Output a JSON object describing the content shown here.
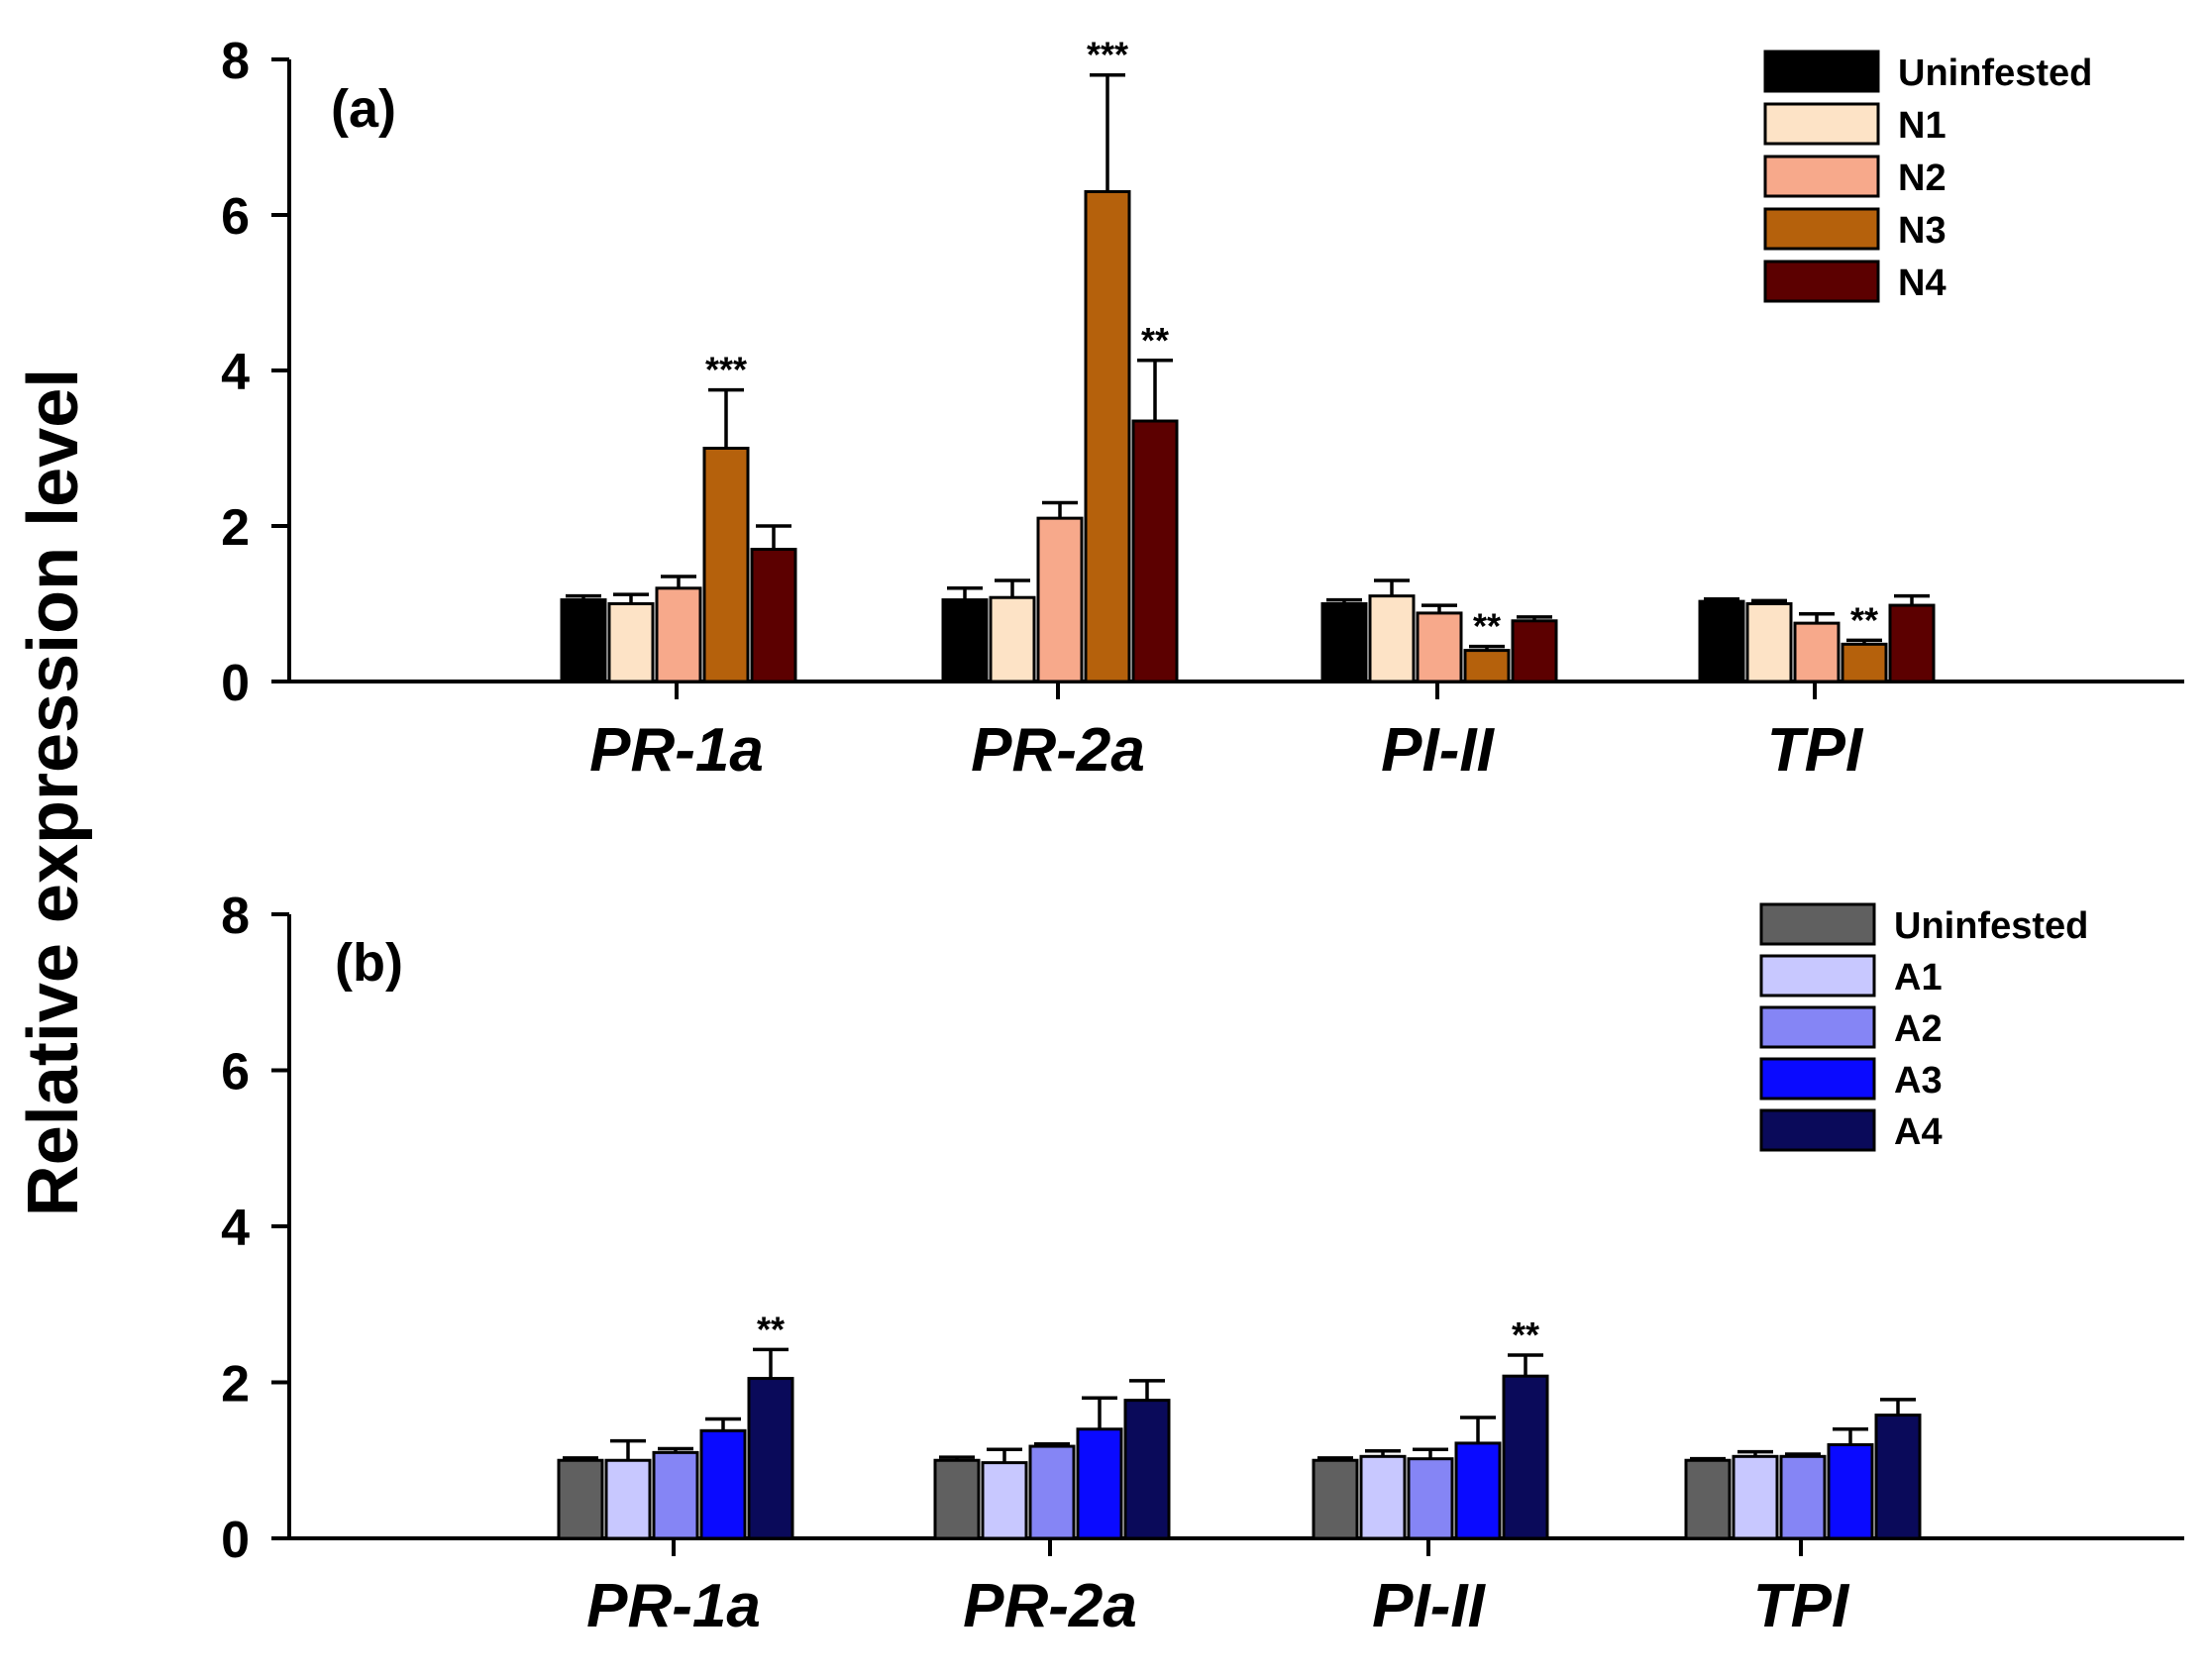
{
  "y_axis_label": "Relative expression level",
  "chart_data": [
    {
      "type": "bar",
      "panel_label": "(a)",
      "categories": [
        "PR-1a",
        "PR-2a",
        "PI-II",
        "TPI"
      ],
      "ylim": [
        0,
        8
      ],
      "yticks": [
        "0",
        "2",
        "4",
        "6",
        "8"
      ],
      "legend_position": "top-right",
      "series": [
        {
          "name": "Uninfested",
          "color": "#000000",
          "values": [
            1.05,
            1.05,
            1.0,
            1.03
          ],
          "errors": [
            0.05,
            0.15,
            0.05,
            0.03
          ]
        },
        {
          "name": "N1",
          "color": "#FDE3C6",
          "values": [
            1.0,
            1.08,
            1.1,
            1.0
          ],
          "errors": [
            0.12,
            0.22,
            0.2,
            0.04
          ]
        },
        {
          "name": "N2",
          "color": "#F7A98B",
          "values": [
            1.2,
            2.1,
            0.88,
            0.75
          ],
          "errors": [
            0.15,
            0.2,
            0.1,
            0.12
          ]
        },
        {
          "name": "N3",
          "color": "#B5610C",
          "values": [
            3.0,
            6.3,
            0.4,
            0.48
          ],
          "errors": [
            0.75,
            1.5,
            0.05,
            0.05
          ]
        },
        {
          "name": "N4",
          "color": "#5C0000",
          "values": [
            1.7,
            3.35,
            0.78,
            0.98
          ],
          "errors": [
            0.3,
            0.78,
            0.05,
            0.12
          ]
        }
      ],
      "significance": [
        {
          "category": "PR-1a",
          "series": "N3",
          "label": "***"
        },
        {
          "category": "PR-2a",
          "series": "N3",
          "label": "***"
        },
        {
          "category": "PR-2a",
          "series": "N4",
          "label": "**"
        },
        {
          "category": "PI-II",
          "series": "N3",
          "label": "**"
        },
        {
          "category": "TPI",
          "series": "N3",
          "label": "**"
        }
      ]
    },
    {
      "type": "bar",
      "panel_label": "(b)",
      "categories": [
        "PR-1a",
        "PR-2a",
        "PI-II",
        "TPI"
      ],
      "ylim": [
        0,
        8
      ],
      "yticks": [
        "0",
        "2",
        "4",
        "6",
        "8"
      ],
      "legend_position": "top-right",
      "series": [
        {
          "name": "Uninfested",
          "color": "#606060",
          "values": [
            1.0,
            1.0,
            1.0,
            1.0
          ],
          "errors": [
            0.03,
            0.04,
            0.03,
            0.02
          ]
        },
        {
          "name": "A1",
          "color": "#C8C8FF",
          "values": [
            1.0,
            0.97,
            1.05,
            1.05
          ],
          "errors": [
            0.25,
            0.17,
            0.07,
            0.06
          ]
        },
        {
          "name": "A2",
          "color": "#8585F5",
          "values": [
            1.1,
            1.18,
            1.02,
            1.05
          ],
          "errors": [
            0.05,
            0.03,
            0.12,
            0.03
          ]
        },
        {
          "name": "A3",
          "color": "#0A0AFF",
          "values": [
            1.38,
            1.4,
            1.22,
            1.2
          ],
          "errors": [
            0.15,
            0.4,
            0.33,
            0.2
          ]
        },
        {
          "name": "A4",
          "color": "#0A0A5A",
          "values": [
            2.05,
            1.77,
            2.08,
            1.58
          ],
          "errors": [
            0.37,
            0.25,
            0.27,
            0.2
          ]
        }
      ],
      "significance": [
        {
          "category": "PR-1a",
          "series": "A4",
          "label": "**"
        },
        {
          "category": "PI-II",
          "series": "A4",
          "label": "**"
        }
      ]
    }
  ]
}
